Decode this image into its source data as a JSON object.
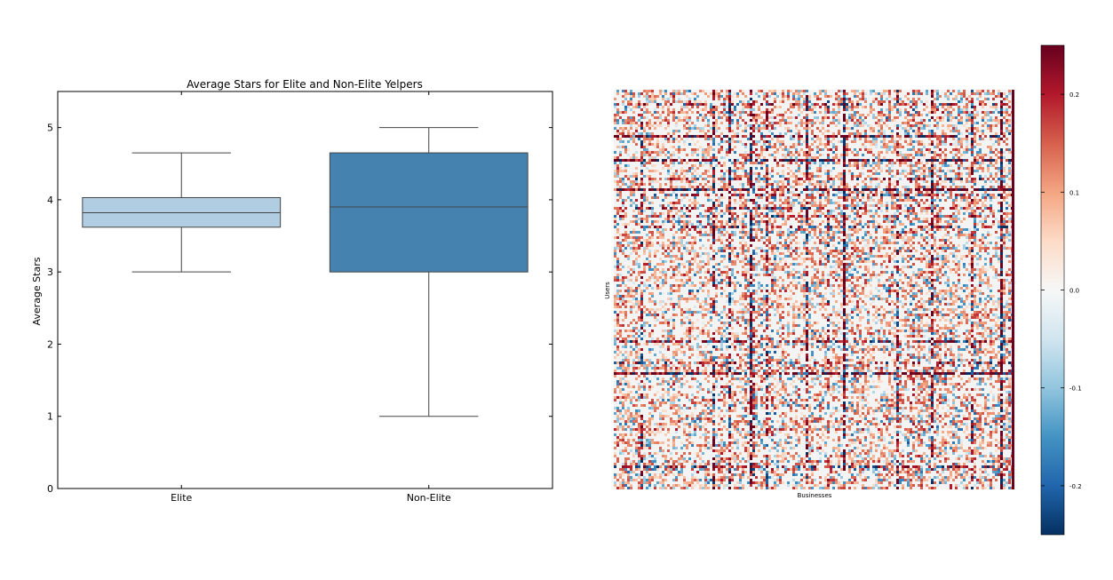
{
  "chart_data": [
    {
      "type": "box",
      "title": "Average Stars for Elite and Non-Elite Yelpers",
      "xlabel": "",
      "ylabel": "Average Stars",
      "categories": [
        "Elite",
        "Non-Elite"
      ],
      "ylim": [
        0,
        5.5
      ],
      "yticks": [
        "0",
        "1",
        "2",
        "3",
        "4",
        "5"
      ],
      "grid": false,
      "boxes": [
        {
          "category": "Elite",
          "whisker_low": 3.0,
          "q1": 3.62,
          "median": 3.82,
          "q3": 4.03,
          "whisker_high": 4.65,
          "color": "#b0cde1"
        },
        {
          "category": "Non-Elite",
          "whisker_low": 1.0,
          "q1": 3.0,
          "median": 3.9,
          "q3": 4.65,
          "whisker_high": 5.0,
          "color": "#4682b0"
        }
      ]
    },
    {
      "type": "heatmap",
      "title": "",
      "xlabel": "Businesses",
      "ylabel": "Users",
      "colormap": "RdBu_r",
      "colorbar": {
        "range": [
          -0.25,
          0.25
        ],
        "ticks": [
          {
            "value": 0.2,
            "label": "0.2"
          },
          {
            "value": 0.1,
            "label": "0.1"
          },
          {
            "value": 0.0,
            "label": "0.0"
          },
          {
            "value": -0.1,
            "label": "-0.1"
          },
          {
            "value": -0.2,
            "label": "-0.2"
          }
        ]
      },
      "colors": {
        "low": "#053061",
        "mid": "#f7f7f7",
        "high": "#67001f"
      }
    }
  ]
}
